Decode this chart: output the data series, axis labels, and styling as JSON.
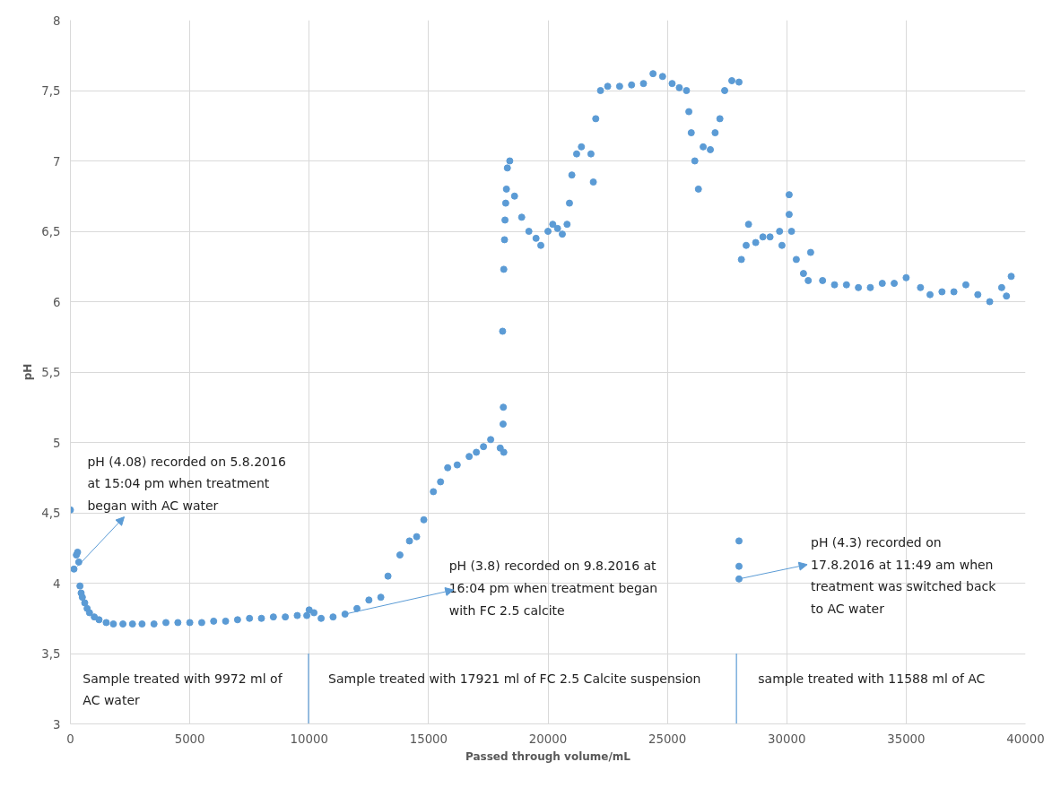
{
  "chart_data": {
    "type": "scatter",
    "xlabel": "Passed through volume/mL",
    "ylabel": "pH",
    "xlim": [
      0,
      40000
    ],
    "xticks": [
      0,
      5000,
      10000,
      15000,
      20000,
      25000,
      30000,
      35000,
      40000
    ],
    "ylim": [
      3,
      8
    ],
    "yticks": [
      3,
      {
        "value": 3.5,
        "label": "3,5"
      },
      4,
      {
        "value": 4.5,
        "label": "4,5"
      },
      5,
      {
        "value": 5.5,
        "label": "5,5"
      },
      6,
      {
        "value": 6.5,
        "label": "6,5"
      },
      7,
      {
        "value": 7.5,
        "label": "7,5"
      },
      8
    ],
    "grid": true,
    "marker": "circle",
    "series": [
      {
        "color": "#5b9bd5",
        "x": [
          0,
          150,
          250,
          300,
          350,
          400,
          450,
          500,
          600,
          700,
          800,
          1000,
          1200,
          1500,
          1800,
          2200,
          2600,
          3000,
          3500,
          4000,
          4500,
          5000,
          5500,
          6000,
          6500,
          7000,
          7500,
          8000,
          8500,
          9000,
          9500,
          9900,
          10000,
          10200,
          10500,
          11000,
          11500,
          12000,
          12500,
          13000,
          13300,
          13800,
          14200,
          14500,
          14800,
          15200,
          15500,
          15800,
          16200,
          16700,
          17000,
          17300,
          17600,
          18000,
          18150,
          18120,
          18130,
          18100,
          18150,
          18180,
          18200,
          18230,
          18260,
          18300,
          18400,
          18600,
          18900,
          19200,
          19500,
          19700,
          20000,
          20200,
          20400,
          20600,
          20800,
          20900,
          21000,
          21200,
          21400,
          21800,
          21900,
          22000,
          22200,
          22500,
          23000,
          23500,
          24000,
          24400,
          24800,
          25200,
          25500,
          25800,
          25900,
          26000,
          26150,
          26300,
          26500,
          26800,
          27000,
          27200,
          27400,
          27700,
          28000,
          28000,
          28000,
          28000,
          28100,
          28300,
          28400,
          28700,
          29000,
          29300,
          29700,
          29800,
          30100,
          30100,
          30200,
          30400,
          30700,
          30900,
          31000,
          31500,
          32000,
          32500,
          33000,
          33500,
          34000,
          34500,
          35000,
          35600,
          36000,
          36500,
          37000,
          37500,
          38000,
          38500,
          39000,
          39200,
          39400
        ],
        "values": [
          4.52,
          4.1,
          4.2,
          4.22,
          4.15,
          3.98,
          3.93,
          3.9,
          3.86,
          3.82,
          3.79,
          3.76,
          3.74,
          3.72,
          3.71,
          3.71,
          3.71,
          3.71,
          3.71,
          3.72,
          3.72,
          3.72,
          3.72,
          3.73,
          3.73,
          3.74,
          3.75,
          3.75,
          3.76,
          3.76,
          3.77,
          3.77,
          3.81,
          3.79,
          3.75,
          3.76,
          3.78,
          3.82,
          3.88,
          3.9,
          4.05,
          4.2,
          4.3,
          4.33,
          4.45,
          4.65,
          4.72,
          4.82,
          4.84,
          4.9,
          4.93,
          4.97,
          5.02,
          4.96,
          4.93,
          5.13,
          5.25,
          5.79,
          6.23,
          6.44,
          6.58,
          6.7,
          6.8,
          6.95,
          7.0,
          6.75,
          6.6,
          6.5,
          6.45,
          6.4,
          6.5,
          6.55,
          6.52,
          6.48,
          6.55,
          6.7,
          6.9,
          7.05,
          7.1,
          7.05,
          6.85,
          7.3,
          7.5,
          7.53,
          7.53,
          7.54,
          7.55,
          7.62,
          7.6,
          7.55,
          7.52,
          7.5,
          7.35,
          7.2,
          7.0,
          6.8,
          7.1,
          7.08,
          7.2,
          7.3,
          7.5,
          7.57,
          7.56,
          4.03,
          4.12,
          4.3,
          6.3,
          6.4,
          6.55,
          6.42,
          6.46,
          6.46,
          6.5,
          6.4,
          6.76,
          6.62,
          6.5,
          6.3,
          6.2,
          6.15,
          6.35,
          6.15,
          6.12,
          6.12,
          6.1,
          6.1,
          6.13,
          6.13,
          6.17,
          6.1,
          6.05,
          6.07,
          6.07,
          6.12,
          6.05,
          6.0,
          6.1,
          6.04,
          6.18
        ]
      }
    ],
    "ref_lines": [
      {
        "axis": "x",
        "value": 9972,
        "color": "#5b9bd5"
      },
      {
        "axis": "x",
        "value": 27893,
        "color": "#5b9bd5"
      }
    ],
    "annotations": [
      {
        "text": "pH (4.08) recorded on 5.8.2016 at 15:04 pm when treatment began with AC water",
        "x": 300,
        "y": 4.12
      },
      {
        "text": "pH (3.8) recorded on 9.8.2016 at 16:04 pm when treatment began with FC 2.5 calcite",
        "x": 11500,
        "y": 3.78
      },
      {
        "text": "pH (4.3) recorded on 17.8.2016 at 11:49 am when treatment was switched back to AC water",
        "x": 28000,
        "y": 4.03
      },
      "Sample treated with 9972 ml of AC water",
      "Sample treated with 17921 ml of FC 2.5 Calcite suspension",
      "sample treated with 11588 ml of AC"
    ]
  }
}
